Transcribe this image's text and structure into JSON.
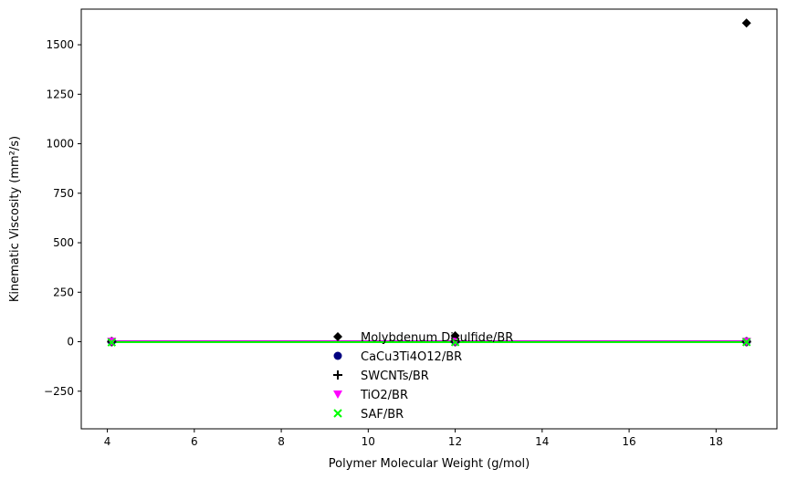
{
  "chart_data": {
    "type": "scatter",
    "title": "",
    "xlabel": "Polymer Molecular Weight (g/mol)",
    "ylabel": "Kinematic Viscosity (mm²/s)",
    "xlim": [
      3.4,
      19.4
    ],
    "ylim": [
      -440,
      1680
    ],
    "xticks": [
      4,
      6,
      8,
      10,
      12,
      14,
      16,
      18
    ],
    "xtick_labels": [
      "4",
      "6",
      "8",
      "10",
      "12",
      "14",
      "16",
      "18"
    ],
    "yticks": [
      -250,
      0,
      250,
      500,
      750,
      1000,
      1250,
      1500
    ],
    "ytick_labels": [
      "−250",
      "0",
      "250",
      "500",
      "750",
      "1000",
      "1250",
      "1500"
    ],
    "grid": false,
    "legend_position": "lower-center",
    "series": [
      {
        "name": "Molybdenum Disulfide/BR",
        "marker": "diamond",
        "color": "#000000",
        "x": [
          4.1,
          12.0,
          18.7
        ],
        "y": [
          2,
          30,
          1610
        ],
        "fit_line": [
          2,
          2,
          2
        ]
      },
      {
        "name": "CaCu3Ti4O12/BR",
        "marker": "circle",
        "color": "#000080",
        "x": [
          4.1,
          12.0,
          18.7
        ],
        "y": [
          1,
          1,
          1
        ],
        "fit_line": [
          1,
          1,
          1
        ]
      },
      {
        "name": "SWCNTs/BR",
        "marker": "plus",
        "color": "#000000",
        "x": [
          4.1,
          12.0,
          18.7
        ],
        "y": [
          0,
          0,
          0
        ],
        "fit_line": [
          0,
          0,
          0
        ]
      },
      {
        "name": "TiO2/BR",
        "marker": "triangle-down",
        "color": "#ff00ff",
        "x": [
          4.1,
          12.0,
          18.7
        ],
        "y": [
          2,
          1,
          1
        ],
        "fit_line": [
          1,
          1,
          1
        ]
      },
      {
        "name": "SAF/BR",
        "marker": "x",
        "color": "#00ff00",
        "x": [
          4.1,
          12.0,
          18.7
        ],
        "y": [
          -3,
          -2,
          -2
        ],
        "fit_line": [
          -2,
          -2,
          -2
        ]
      }
    ]
  }
}
